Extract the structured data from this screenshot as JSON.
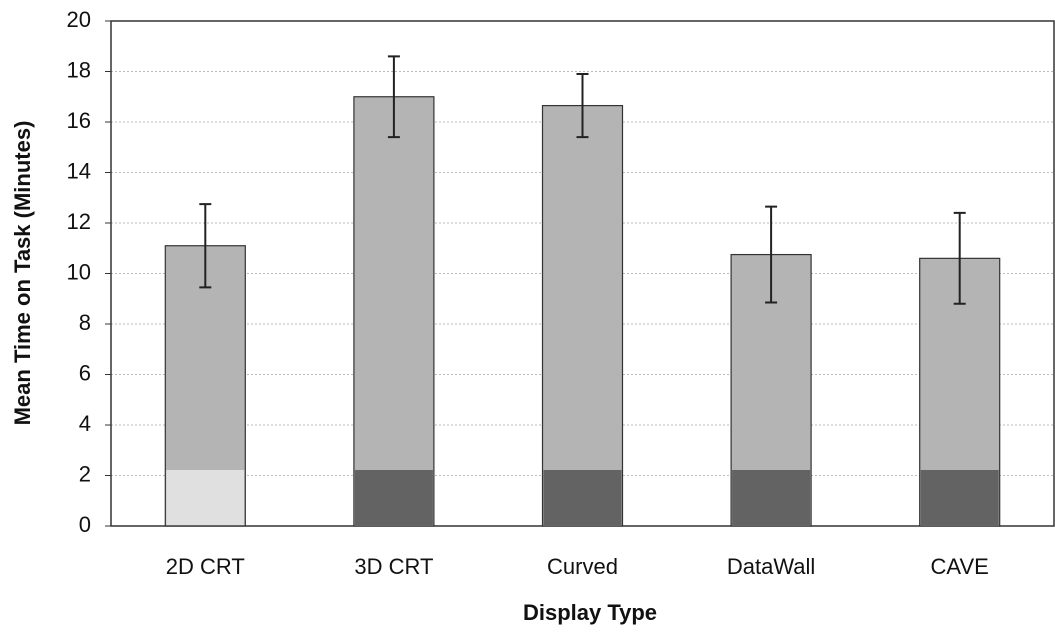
{
  "chart_data": {
    "type": "bar",
    "categories": [
      "2D CRT",
      "3D CRT",
      "Curved",
      "DataWall",
      "CAVE"
    ],
    "values": [
      11.1,
      17.0,
      16.65,
      10.75,
      10.6
    ],
    "errors": [
      1.65,
      1.6,
      1.25,
      1.9,
      1.8
    ],
    "color": "#b4b4b4",
    "xlabel": "Display Type",
    "ylabel": "Mean Time on Task (Minutes)",
    "ylim": [
      0,
      20
    ],
    "yticks": [
      0,
      2,
      4,
      6,
      8,
      10,
      12,
      14,
      16,
      18,
      20
    ],
    "grid": true
  }
}
